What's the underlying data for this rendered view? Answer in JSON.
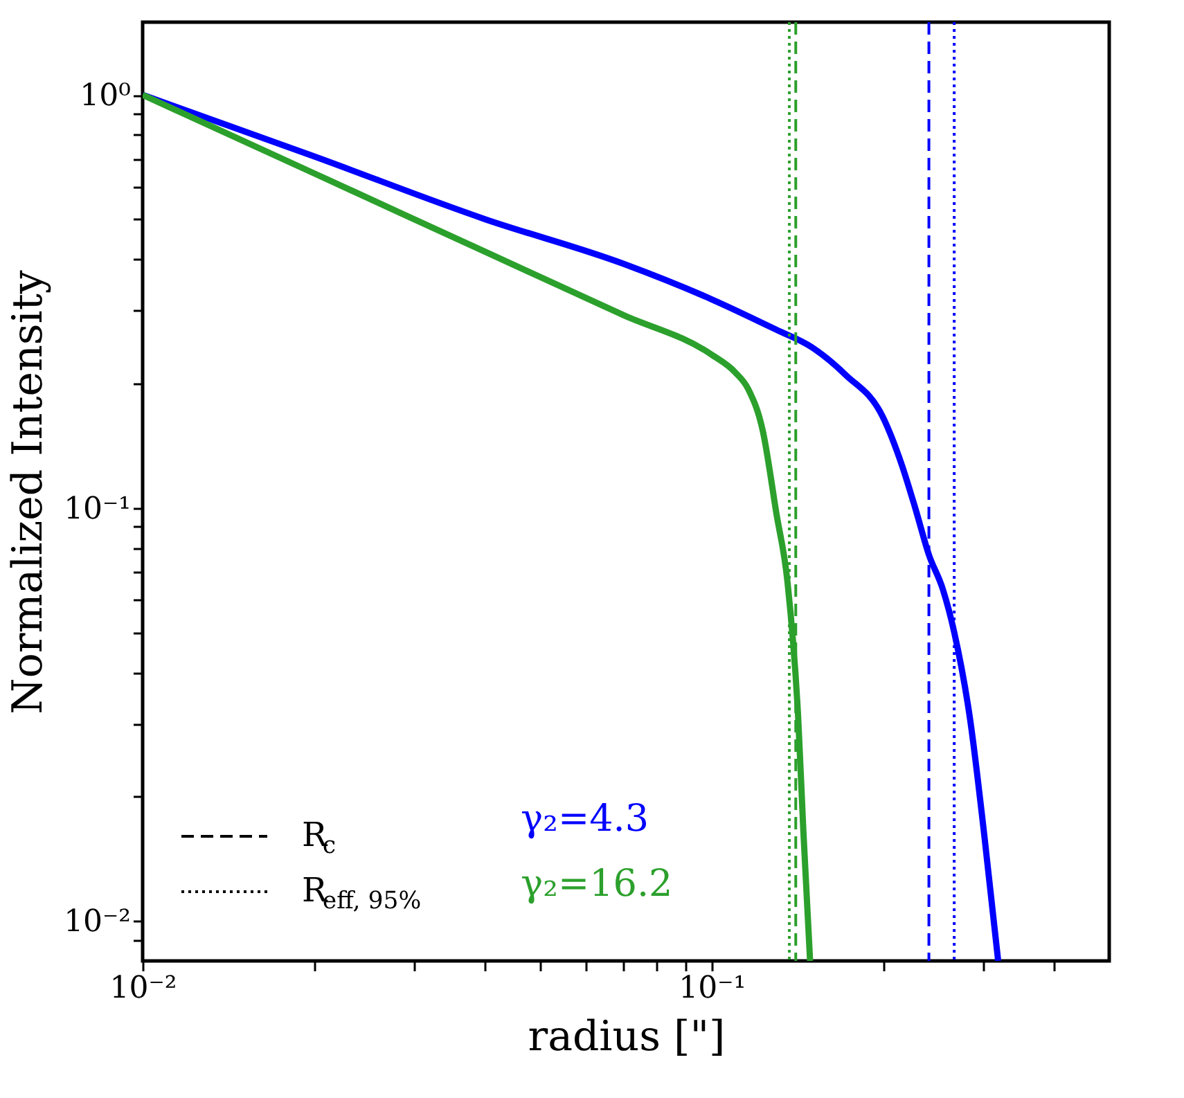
{
  "chart_data": {
    "type": "line",
    "xlabel": "radius [\"]",
    "ylabel": "Normalized Intensity",
    "log": "xy",
    "grid": false,
    "legend": "bottom left",
    "marker": "none",
    "xlim": [
      0.01,
      0.5
    ],
    "ylim": [
      0.008,
      1.5
    ],
    "xticks": [
      {
        "value": 0.01,
        "label": "10⁻²"
      },
      {
        "value": 0.02,
        "label": null
      },
      {
        "value": 0.03,
        "label": null
      },
      {
        "value": 0.04,
        "label": null
      },
      {
        "value": 0.05,
        "label": null
      },
      {
        "value": 0.06,
        "label": null
      },
      {
        "value": 0.07,
        "label": null
      },
      {
        "value": 0.08,
        "label": null
      },
      {
        "value": 0.09,
        "label": null
      },
      {
        "value": 0.1,
        "label": "10⁻¹"
      },
      {
        "value": 0.2,
        "label": null
      },
      {
        "value": 0.3,
        "label": null
      },
      {
        "value": 0.4,
        "label": null
      }
    ],
    "yticks": [
      {
        "value": 0.009,
        "label": null
      },
      {
        "value": 0.01,
        "label": "10⁻²"
      },
      {
        "value": 0.02,
        "label": null
      },
      {
        "value": 0.03,
        "label": null
      },
      {
        "value": 0.04,
        "label": null
      },
      {
        "value": 0.05,
        "label": null
      },
      {
        "value": 0.06,
        "label": null
      },
      {
        "value": 0.07,
        "label": null
      },
      {
        "value": 0.08,
        "label": null
      },
      {
        "value": 0.09,
        "label": null
      },
      {
        "value": 0.1,
        "label": "10⁻¹"
      },
      {
        "value": 0.2,
        "label": null
      },
      {
        "value": 0.3,
        "label": null
      },
      {
        "value": 0.4,
        "label": null
      },
      {
        "value": 0.5,
        "label": null
      },
      {
        "value": 0.6,
        "label": null
      },
      {
        "value": 0.7,
        "label": null
      },
      {
        "value": 0.8,
        "label": null
      },
      {
        "value": 0.9,
        "label": null
      },
      {
        "value": 1,
        "label": "10⁰"
      }
    ],
    "series": [
      {
        "name": "γ₂=4.3",
        "color": "#0000ff",
        "x": [
          0.01,
          0.02,
          0.04,
          0.07,
          0.1,
          0.13,
          0.15,
          0.172,
          0.2,
          0.216,
          0.228,
          0.241,
          0.255,
          0.267,
          0.285,
          0.301,
          0.319
        ],
        "values": [
          1,
          0.71,
          0.5,
          0.39,
          0.32,
          0.27,
          0.245,
          0.21,
          0.166,
          0.127,
          0.1,
          0.077,
          0.0635,
          0.05,
          0.0305,
          0.0165,
          0.008
        ]
      },
      {
        "name": "γ₂=16.2",
        "color": "#2ca02c",
        "x": [
          0.01,
          0.02,
          0.04,
          0.07,
          0.1,
          0.11,
          0.116,
          0.123,
          0.13,
          0.136,
          0.142,
          0.145,
          0.149
        ],
        "values": [
          1,
          0.646,
          0.417,
          0.293,
          0.235,
          0.213,
          0.194,
          0.154,
          0.097,
          0.066,
          0.031,
          0.0165,
          0.008
        ]
      }
    ],
    "ref_lines": [
      {
        "axis": "x",
        "value": 0.1406,
        "color": "#2ca02c",
        "line_style": "dashed"
      },
      {
        "axis": "x",
        "value": 0.137,
        "color": "#2ca02c",
        "line_style": "dotted"
      },
      {
        "axis": "x",
        "value": 0.241,
        "color": "#0000ff",
        "line_style": "dashed"
      },
      {
        "axis": "x",
        "value": 0.267,
        "color": "#0000ff",
        "line_style": "dotted"
      }
    ],
    "annotations": [
      "R$_{c}$",
      "R$_{eff, 95%}$"
    ]
  }
}
